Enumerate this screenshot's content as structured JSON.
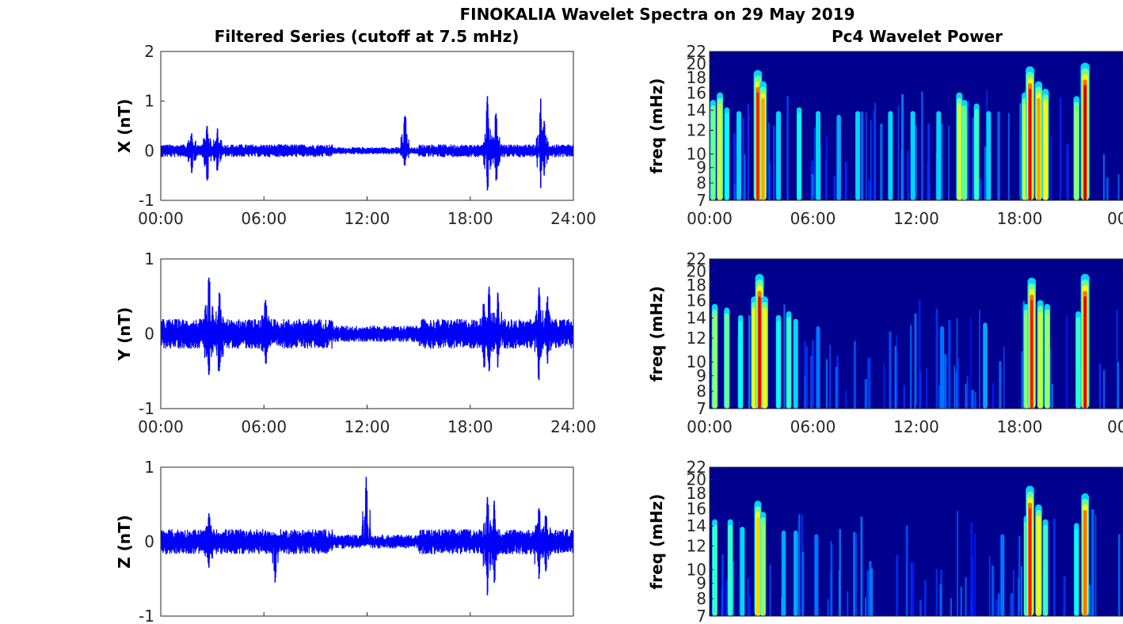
{
  "figure": {
    "suptitle": "FINOKALIA Wavelet Spectra on 29 May 2019",
    "left_title": "Filtered Series (cutoff at 7.5 mHz)",
    "right_title": "Pc4 Wavelet Power"
  },
  "colors": {
    "trace": "#0000ff",
    "colormap": "jet",
    "background": "#00008f"
  },
  "chart_data": [
    {
      "type": "line",
      "ylabel": "X (nT)",
      "ylim": [
        -1,
        2
      ],
      "yticks": [
        "2",
        "1",
        "0",
        "-1"
      ],
      "xticks": [
        "00:00",
        "06:00",
        "12:00",
        "18:00",
        "24:00"
      ],
      "xlim_hours": [
        0,
        24
      ],
      "baseline_amplitude_nT": 0.13,
      "series": [
        {
          "spikes": [
            {
              "t": 1.8,
              "hi": 0.35,
              "lo": -0.45
            },
            {
              "t": 2.7,
              "hi": 0.5,
              "lo": -0.6
            },
            {
              "t": 3.3,
              "hi": 0.45,
              "lo": -0.4
            },
            {
              "t": 14.2,
              "hi": 0.7,
              "lo": -0.3
            },
            {
              "t": 19.0,
              "hi": 1.1,
              "lo": -0.8
            },
            {
              "t": 19.5,
              "hi": 0.75,
              "lo": -0.6
            },
            {
              "t": 22.1,
              "hi": 1.05,
              "lo": -0.75
            },
            {
              "t": 22.3,
              "hi": 0.6,
              "lo": -0.5
            }
          ]
        }
      ]
    },
    {
      "type": "line",
      "ylabel": "Y (nT)",
      "ylim": [
        -1,
        1
      ],
      "yticks": [
        "1",
        "0",
        "-1"
      ],
      "xticks": [
        "00:00",
        "06:00",
        "12:00",
        "18:00",
        "24:00"
      ],
      "xlim_hours": [
        0,
        24
      ],
      "baseline_amplitude_nT": 0.2,
      "series": [
        {
          "spikes": [
            {
              "t": 2.8,
              "hi": 0.75,
              "lo": -0.55
            },
            {
              "t": 3.4,
              "hi": 0.55,
              "lo": -0.5
            },
            {
              "t": 6.1,
              "hi": 0.45,
              "lo": -0.4
            },
            {
              "t": 18.8,
              "hi": 0.4,
              "lo": -0.45
            },
            {
              "t": 19.1,
              "hi": 0.63,
              "lo": -0.5
            },
            {
              "t": 19.6,
              "hi": 0.55,
              "lo": -0.45
            },
            {
              "t": 22.0,
              "hi": 0.62,
              "lo": -0.62
            },
            {
              "t": 22.5,
              "hi": 0.5,
              "lo": -0.4
            }
          ]
        }
      ]
    },
    {
      "type": "line",
      "ylabel": "Z (nT)",
      "ylim": [
        -1,
        1
      ],
      "yticks": [
        "1",
        "0",
        "-1"
      ],
      "xticks": [],
      "xlim_hours": [
        0,
        24
      ],
      "baseline_amplitude_nT": 0.17,
      "series": [
        {
          "spikes": [
            {
              "t": 2.8,
              "hi": 0.38,
              "lo": -0.35
            },
            {
              "t": 6.65,
              "hi": 0.1,
              "lo": -0.55
            },
            {
              "t": 11.95,
              "hi": 0.87,
              "lo": -0.05
            },
            {
              "t": 19.0,
              "hi": 0.6,
              "lo": -0.72
            },
            {
              "t": 19.4,
              "hi": 0.55,
              "lo": -0.55
            },
            {
              "t": 22.0,
              "hi": 0.45,
              "lo": -0.5
            },
            {
              "t": 22.4,
              "hi": 0.35,
              "lo": -0.4
            }
          ]
        }
      ]
    },
    {
      "type": "heatmap",
      "ylabel": "freq (mHz)",
      "ylim_mHz": [
        7,
        22
      ],
      "yscale": "log",
      "yticks": [
        "22",
        "20",
        "18",
        "16",
        "14",
        "12",
        "10",
        "9",
        "8",
        "7"
      ],
      "xticks": [
        "00:00",
        "06:00",
        "12:00",
        "18:00",
        "00"
      ],
      "xlim_hours": [
        0,
        24
      ],
      "bursts": [
        {
          "t": 0.2,
          "p": 0.45
        },
        {
          "t": 0.6,
          "p": 0.55
        },
        {
          "t": 1.0,
          "p": 0.35
        },
        {
          "t": 1.7,
          "p": 0.3
        },
        {
          "t": 2.8,
          "p": 0.85
        },
        {
          "t": 3.1,
          "p": 0.7
        },
        {
          "t": 4.0,
          "p": 0.3
        },
        {
          "t": 5.2,
          "p": 0.35
        },
        {
          "t": 6.3,
          "p": 0.3
        },
        {
          "t": 7.5,
          "p": 0.25
        },
        {
          "t": 8.6,
          "p": 0.3
        },
        {
          "t": 10.5,
          "p": 0.3
        },
        {
          "t": 11.8,
          "p": 0.3
        },
        {
          "t": 13.3,
          "p": 0.3
        },
        {
          "t": 14.5,
          "p": 0.55
        },
        {
          "t": 14.8,
          "p": 0.45
        },
        {
          "t": 15.5,
          "p": 0.4
        },
        {
          "t": 16.2,
          "p": 0.3
        },
        {
          "t": 18.3,
          "p": 0.55
        },
        {
          "t": 18.6,
          "p": 0.9
        },
        {
          "t": 19.1,
          "p": 0.7
        },
        {
          "t": 19.5,
          "p": 0.6
        },
        {
          "t": 21.3,
          "p": 0.5
        },
        {
          "t": 21.8,
          "p": 0.95
        }
      ]
    },
    {
      "type": "heatmap",
      "ylabel": "freq (mHz)",
      "ylim_mHz": [
        7,
        22
      ],
      "yscale": "log",
      "yticks": [
        "22",
        "20",
        "18",
        "16",
        "14",
        "12",
        "10",
        "9",
        "8",
        "7"
      ],
      "xticks": [
        "00:00",
        "06:00",
        "12:00",
        "18:00",
        "00"
      ],
      "xlim_hours": [
        0,
        24
      ],
      "bursts": [
        {
          "t": 0.3,
          "p": 0.5
        },
        {
          "t": 1.0,
          "p": 0.45
        },
        {
          "t": 1.8,
          "p": 0.35
        },
        {
          "t": 2.6,
          "p": 0.6
        },
        {
          "t": 2.9,
          "p": 0.9
        },
        {
          "t": 3.2,
          "p": 0.6
        },
        {
          "t": 4.0,
          "p": 0.35
        },
        {
          "t": 4.6,
          "p": 0.4
        },
        {
          "t": 5.0,
          "p": 0.3
        },
        {
          "t": 6.3,
          "p": 0.2
        },
        {
          "t": 13.5,
          "p": 0.2
        },
        {
          "t": 16.0,
          "p": 0.25
        },
        {
          "t": 18.4,
          "p": 0.5
        },
        {
          "t": 18.7,
          "p": 0.85
        },
        {
          "t": 19.2,
          "p": 0.55
        },
        {
          "t": 19.6,
          "p": 0.5
        },
        {
          "t": 21.4,
          "p": 0.4
        },
        {
          "t": 21.8,
          "p": 0.9
        }
      ]
    },
    {
      "type": "heatmap",
      "ylabel": "freq (mHz)",
      "ylim_mHz": [
        7,
        22
      ],
      "yscale": "log",
      "yticks": [
        "22",
        "20",
        "18",
        "16",
        "14",
        "12",
        "10",
        "9",
        "8",
        "7"
      ],
      "xticks": [],
      "xlim_hours": [
        0,
        24
      ],
      "bursts": [
        {
          "t": 0.3,
          "p": 0.4
        },
        {
          "t": 1.2,
          "p": 0.4
        },
        {
          "t": 1.9,
          "p": 0.3
        },
        {
          "t": 2.8,
          "p": 0.65
        },
        {
          "t": 3.1,
          "p": 0.5
        },
        {
          "t": 4.3,
          "p": 0.25
        },
        {
          "t": 5.0,
          "p": 0.25
        },
        {
          "t": 6.2,
          "p": 0.2
        },
        {
          "t": 17.0,
          "p": 0.2
        },
        {
          "t": 18.4,
          "p": 0.45
        },
        {
          "t": 18.6,
          "p": 0.85
        },
        {
          "t": 19.1,
          "p": 0.6
        },
        {
          "t": 19.5,
          "p": 0.4
        },
        {
          "t": 21.3,
          "p": 0.35
        },
        {
          "t": 21.8,
          "p": 0.75
        }
      ]
    }
  ]
}
